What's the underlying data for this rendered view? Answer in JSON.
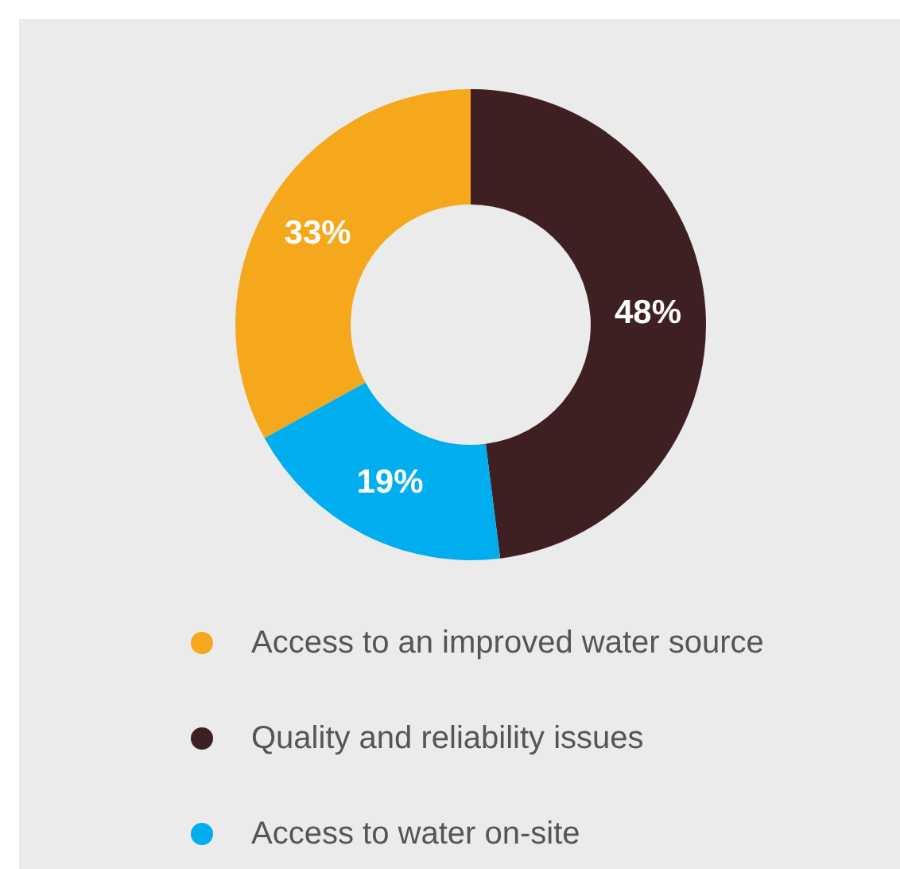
{
  "chart_data": {
    "type": "donut",
    "categories": [
      "Access to an improved water source",
      "Quality and reliability issues",
      "Access to water on-site"
    ],
    "values": [
      33,
      48,
      19
    ],
    "colors": [
      "#f5a81c",
      "#3e2022",
      "#00aeef"
    ],
    "value_labels": [
      "33%",
      "48%",
      "19%"
    ],
    "legend": "bottom"
  }
}
